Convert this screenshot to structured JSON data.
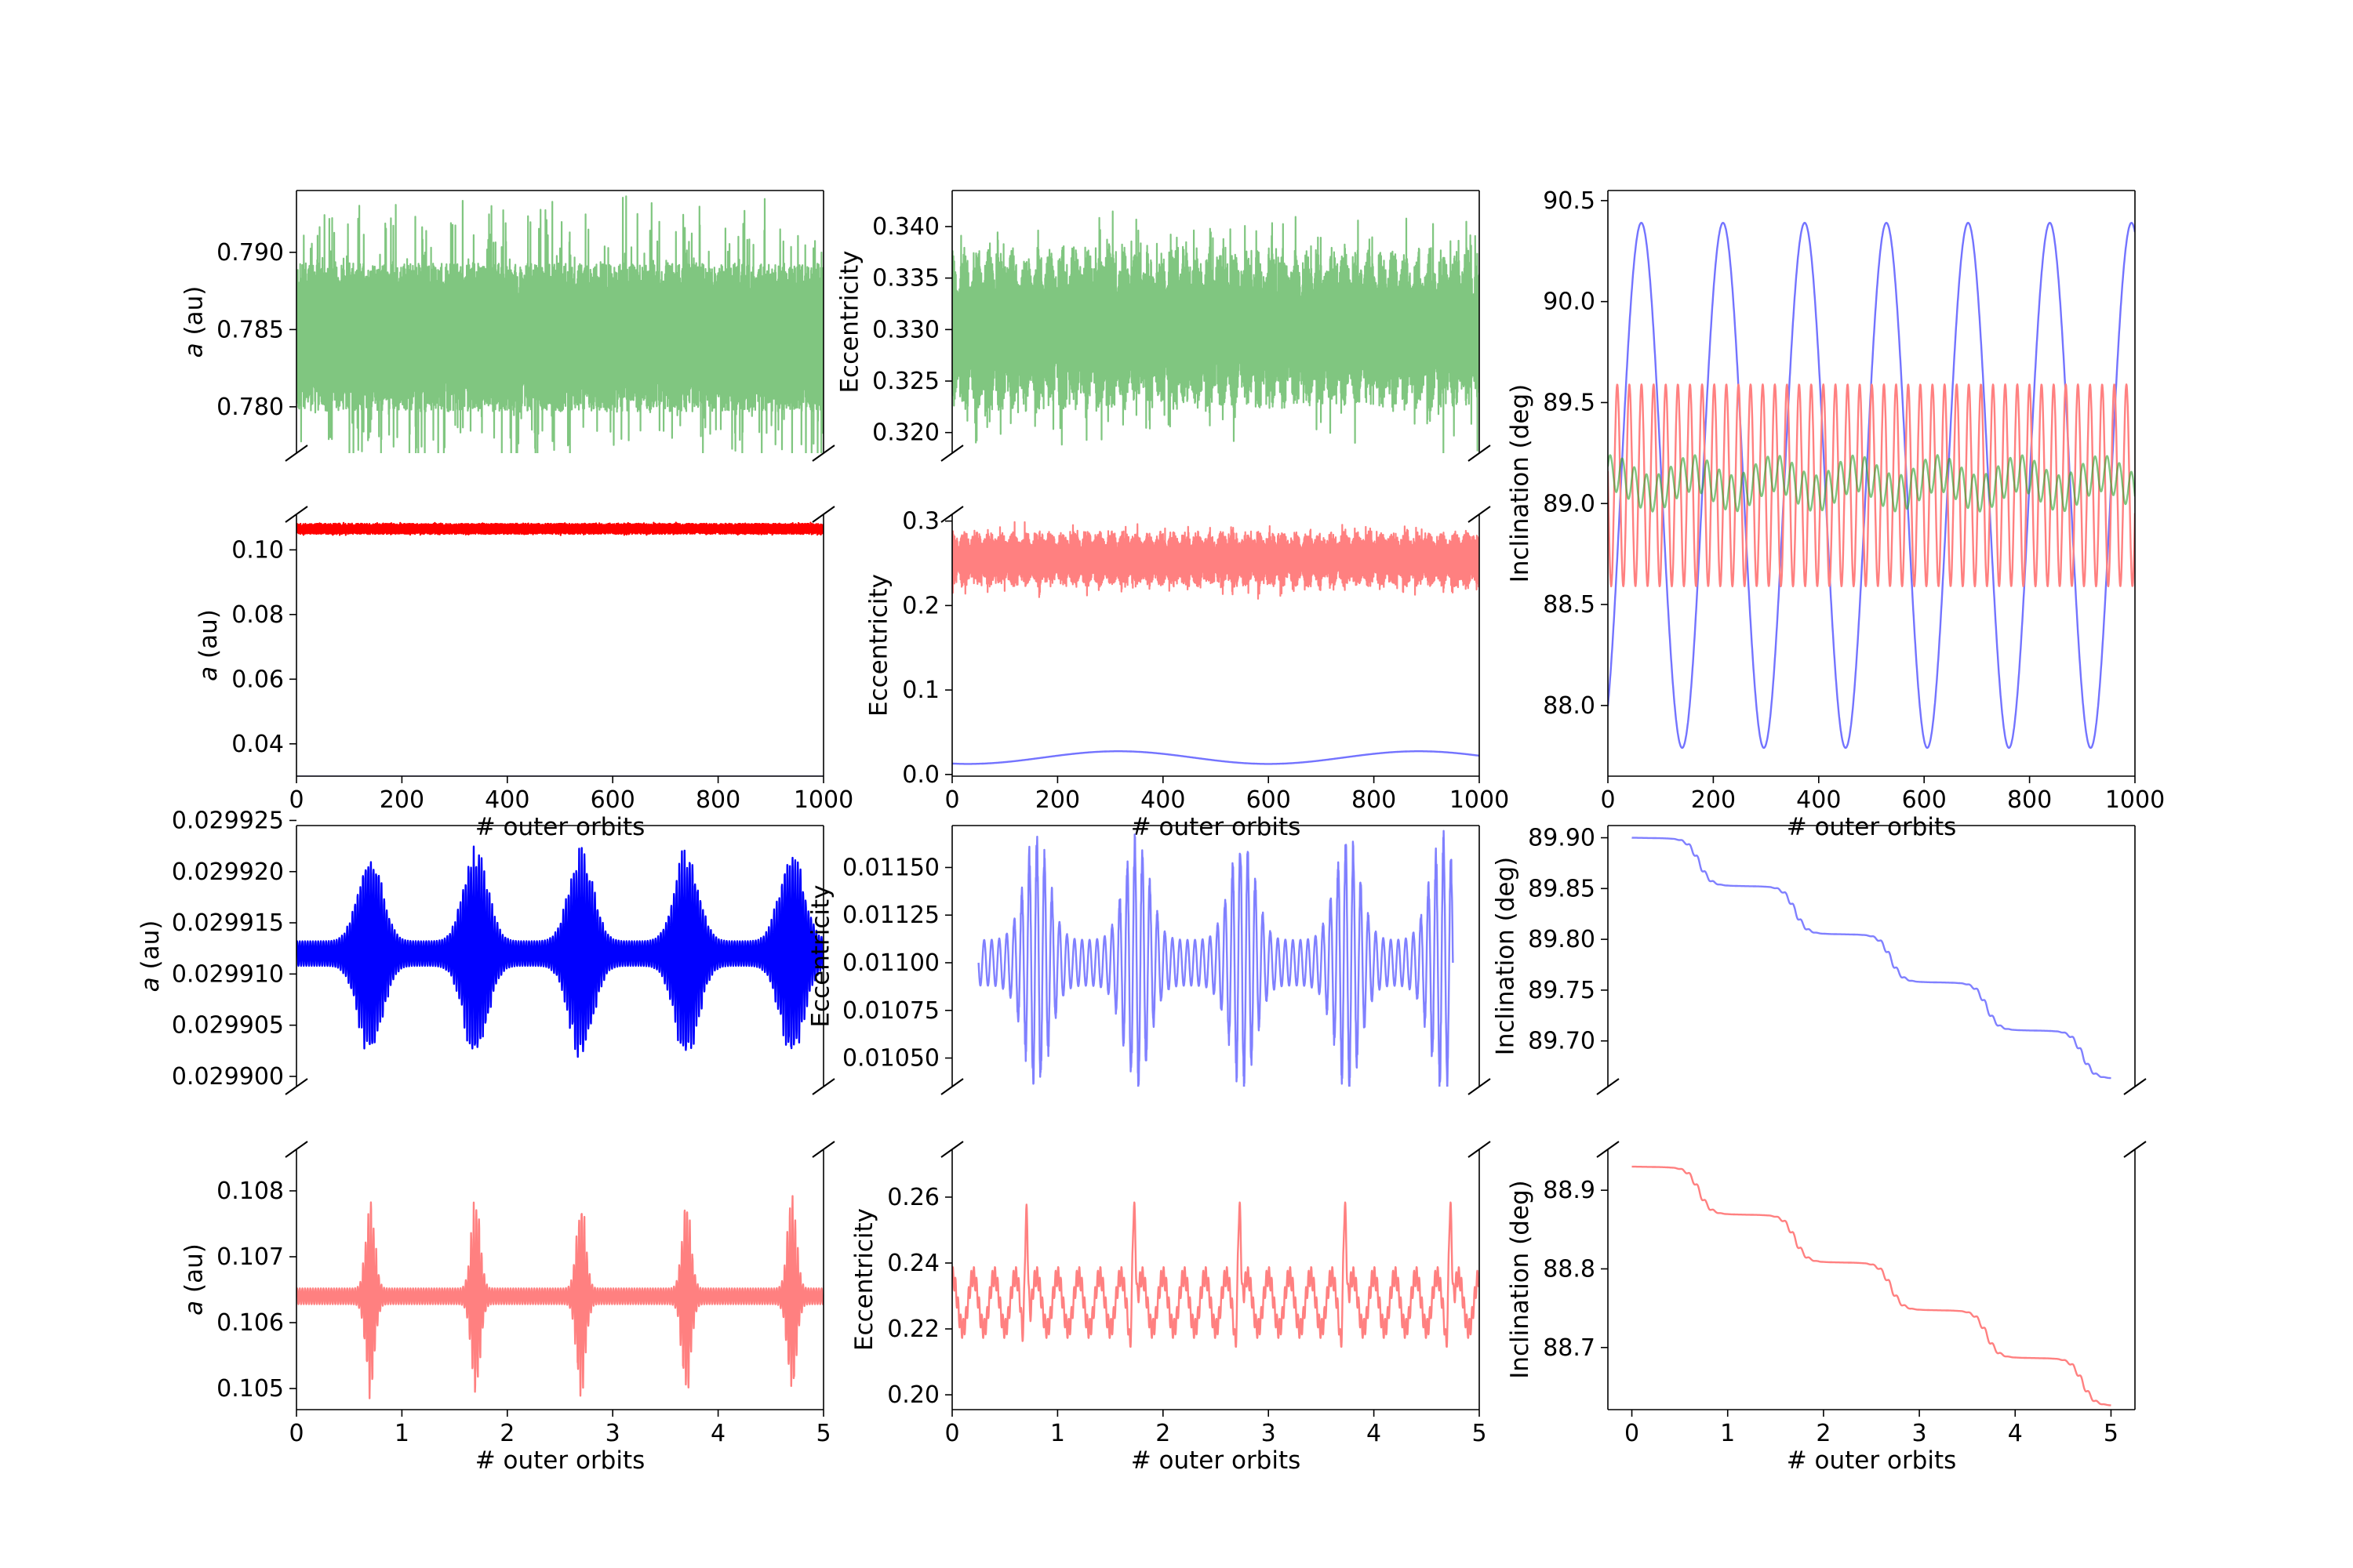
{
  "colors": {
    "green": "#2ca02c",
    "red": "#ff0000",
    "blue": "#0000ff",
    "light_red": "#ff8080",
    "light_blue": "#8080ff"
  },
  "chart_data": [
    {
      "id": "a-top",
      "type": "line",
      "ylabel": "a (au)",
      "xlim": [
        0,
        1000
      ],
      "ylim": [
        0.777,
        0.794
      ],
      "yticks": [
        0.78,
        0.785,
        0.79
      ],
      "ytick_labels": [
        "0.780",
        "0.785",
        "0.790"
      ],
      "xticks": [],
      "xtick_labels": [],
      "xlabel": "",
      "break_bottom": true,
      "series": [
        {
          "color": "green",
          "alpha": 0.6,
          "kind": "band",
          "center": 0.7845,
          "half": 0.0048,
          "spike": 0.0044,
          "freq": 0.19,
          "env_freq": 0
        }
      ]
    },
    {
      "id": "a-mid",
      "type": "line",
      "ylabel": "a (au)",
      "xlim": [
        0,
        1000
      ],
      "ylim": [
        0.03,
        0.111
      ],
      "yticks": [
        0.04,
        0.06,
        0.08,
        0.1
      ],
      "ytick_labels": [
        "0.04",
        "0.06",
        "0.08",
        "0.10"
      ],
      "xticks": [
        0,
        200,
        400,
        600,
        800,
        1000
      ],
      "xtick_labels": [
        "0",
        "200",
        "400",
        "600",
        "800",
        "1000"
      ],
      "xlabel": "# outer orbits",
      "break_top": true,
      "series": [
        {
          "color": "red",
          "alpha": 1.0,
          "kind": "band",
          "center": 0.1065,
          "half": 0.0016,
          "spike": 0.0004,
          "freq": 0.5,
          "env_freq": 0
        },
        {
          "color": "blue",
          "alpha": 0.55,
          "kind": "flat",
          "center": 0.0299
        }
      ]
    },
    {
      "id": "e-top",
      "type": "line",
      "ylabel": "Eccentricity",
      "xlim": [
        0,
        1000
      ],
      "ylim": [
        0.318,
        0.3435
      ],
      "yticks": [
        0.32,
        0.325,
        0.33,
        0.335,
        0.34
      ],
      "ytick_labels": [
        "0.320",
        "0.325",
        "0.330",
        "0.335",
        "0.340"
      ],
      "xticks": [],
      "xtick_labels": [],
      "xlabel": "",
      "break_bottom": true,
      "series": [
        {
          "color": "green",
          "alpha": 0.6,
          "kind": "band",
          "center": 0.33,
          "half": 0.008,
          "spike": 0.0048,
          "freq": 0.19,
          "env_freq": 0.043
        }
      ]
    },
    {
      "id": "e-mid",
      "type": "line",
      "ylabel": "Eccentricity",
      "xlim": [
        0,
        1000
      ],
      "ylim": [
        -0.002,
        0.308
      ],
      "yticks": [
        0.0,
        0.1,
        0.2,
        0.3
      ],
      "ytick_labels": [
        "0.0",
        "0.1",
        "0.2",
        "0.3"
      ],
      "xticks": [
        0,
        200,
        400,
        600,
        800,
        1000
      ],
      "xtick_labels": [
        "0",
        "200",
        "400",
        "600",
        "800",
        "1000"
      ],
      "xlabel": "# outer orbits",
      "break_top": true,
      "series": [
        {
          "color": "light_red",
          "alpha": 1.0,
          "kind": "band",
          "center": 0.255,
          "half": 0.033,
          "spike": 0.017,
          "freq": 0.043,
          "env_freq": 0.043
        },
        {
          "color": "blue",
          "alpha": 0.55,
          "kind": "sine",
          "center": 0.02,
          "amp": 0.0075,
          "period": 570,
          "phase": -1.9
        }
      ]
    },
    {
      "id": "inc-big",
      "type": "line",
      "ylabel": "Inclination (deg)",
      "xlim": [
        0,
        1000
      ],
      "ylim": [
        87.65,
        90.55
      ],
      "yticks": [
        88.0,
        88.5,
        89.0,
        89.5,
        90.0,
        90.5
      ],
      "ytick_labels": [
        "88.0",
        "88.5",
        "89.0",
        "89.5",
        "90.0",
        "90.5"
      ],
      "xticks": [
        0,
        200,
        400,
        600,
        800,
        1000
      ],
      "xtick_labels": [
        "0",
        "200",
        "400",
        "600",
        "800",
        "1000"
      ],
      "xlabel": "# outer orbits",
      "series": [
        {
          "color": "blue",
          "alpha": 0.55,
          "kind": "sine",
          "center": 89.09,
          "amp": 1.3,
          "period": 155,
          "phase": -1.0
        },
        {
          "color": "light_red",
          "alpha": 1.0,
          "kind": "sine",
          "center": 89.09,
          "amp": 0.5,
          "period": 23.0,
          "phase": 3.0
        },
        {
          "color": "green",
          "alpha": 0.6,
          "kind": "sine2",
          "center": 89.1,
          "amp": 0.09,
          "period": 23.0,
          "amp2": 0.05,
          "period2": 155,
          "phase": 0.4
        }
      ]
    },
    {
      "id": "a-zoom-blue",
      "type": "line",
      "ylabel": "a (au)",
      "xlim": [
        0,
        5
      ],
      "ylim": [
        0.029899,
        0.0299245
      ],
      "yticks": [
        0.0299,
        0.029905,
        0.02991,
        0.029915,
        0.02992,
        0.029925
      ],
      "ytick_labels": [
        "0.029900",
        "0.029905",
        "0.029910",
        "0.029915",
        "0.029920",
        "0.029925"
      ],
      "xticks": [],
      "xtick_labels": [],
      "xlabel": "",
      "break_bottom": true,
      "series": [
        {
          "color": "blue",
          "alpha": 1.0,
          "kind": "burst",
          "center": 0.029912,
          "base": 1.2e-06,
          "amp": 9.5e-06,
          "cycles": 40,
          "peaks": [
            0.7,
            1.7,
            2.7,
            3.7,
            4.7
          ],
          "width": 0.16
        }
      ]
    },
    {
      "id": "a-zoom-red",
      "type": "line",
      "ylabel": "a (au)",
      "xlim": [
        0,
        5
      ],
      "ylim": [
        0.10468,
        0.10863
      ],
      "yticks": [
        0.105,
        0.106,
        0.107,
        0.108
      ],
      "ytick_labels": [
        "0.105",
        "0.106",
        "0.107",
        "0.108"
      ],
      "xticks": [
        0,
        1,
        2,
        3,
        4,
        5
      ],
      "xtick_labels": [
        "0",
        "1",
        "2",
        "3",
        "4",
        "5"
      ],
      "xlabel": "# outer orbits",
      "break_top": true,
      "series": [
        {
          "color": "light_red",
          "alpha": 1.0,
          "kind": "burst",
          "center": 0.1064,
          "base": 0.00012,
          "amp": 0.0015,
          "cycles": 40,
          "peaks": [
            0.7,
            1.7,
            2.7,
            3.7,
            4.7
          ],
          "width": 0.06
        }
      ]
    },
    {
      "id": "e-zoom-blue",
      "type": "line",
      "ylabel": "Eccentricity",
      "xlim": [
        0,
        5
      ],
      "ylim": [
        0.01035,
        0.01172
      ],
      "yticks": [
        0.0105,
        0.01075,
        0.011,
        0.01125,
        0.0115
      ],
      "ytick_labels": [
        "0.01050",
        "0.01075",
        "0.01100",
        "0.01125",
        "0.01150"
      ],
      "xticks": [],
      "xtick_labels": [],
      "xlabel": "",
      "break_bottom": true,
      "series": [
        {
          "color": "light_blue",
          "alpha": 1.0,
          "kind": "burst2",
          "x0": 0.25,
          "x1": 4.75,
          "center": 0.011,
          "base": 0.00012,
          "amp": 0.00058,
          "cycles": 14,
          "peaks": [
            0.8,
            1.75,
            2.75,
            3.75,
            4.65
          ],
          "width": 0.17
        }
      ]
    },
    {
      "id": "e-zoom-red",
      "type": "line",
      "ylabel": "Eccentricity",
      "xlim": [
        0,
        5
      ],
      "ylim": [
        0.1955,
        0.2745
      ],
      "yticks": [
        0.2,
        0.22,
        0.24,
        0.26
      ],
      "ytick_labels": [
        "0.20",
        "0.22",
        "0.24",
        "0.26"
      ],
      "xticks": [
        0,
        1,
        2,
        3,
        4,
        5
      ],
      "xtick_labels": [
        "0",
        "1",
        "2",
        "3",
        "4",
        "5"
      ],
      "xlabel": "# outer orbits",
      "break_top": true,
      "series": [
        {
          "color": "light_red",
          "alpha": 1.0,
          "kind": "ecc",
          "center": 0.228,
          "amp": 0.008,
          "cycles": 5,
          "ripple": 0.003,
          "ripple_cycles": 40,
          "peaks": [
            0.7,
            1.72,
            2.72,
            3.72,
            4.72
          ],
          "spike": 0.036
        }
      ]
    },
    {
      "id": "inc-zoom-blue",
      "type": "line",
      "ylabel": "Inclination (deg)",
      "xlim": [
        -0.25,
        5.25
      ],
      "ylim": [
        89.655,
        89.912
      ],
      "yticks": [
        89.7,
        89.75,
        89.8,
        89.85,
        89.9
      ],
      "ytick_labels": [
        "89.70",
        "89.75",
        "89.80",
        "89.85",
        "89.90"
      ],
      "xticks": [],
      "xtick_labels": [],
      "xlabel": "",
      "break_bottom": true,
      "series": [
        {
          "color": "light_blue",
          "alpha": 1.0,
          "kind": "stairs",
          "x0": 0,
          "x1": 5,
          "start": 89.9,
          "end": 89.67,
          "steps": [
            0.7,
            1.7,
            2.7,
            3.7,
            4.7
          ],
          "wiggle": 0.003
        }
      ]
    },
    {
      "id": "inc-zoom-red",
      "type": "line",
      "ylabel": "Inclination (deg)",
      "xlim": [
        -0.25,
        5.25
      ],
      "ylim": [
        88.621,
        88.952
      ],
      "yticks": [
        88.7,
        88.8,
        88.9
      ],
      "ytick_labels": [
        "88.7",
        "88.8",
        "88.9"
      ],
      "xticks": [
        0,
        1,
        2,
        3,
        4,
        5
      ],
      "xtick_labels": [
        "0",
        "1",
        "2",
        "3",
        "4",
        "5"
      ],
      "xlabel": "# outer orbits",
      "break_top": true,
      "series": [
        {
          "color": "light_red",
          "alpha": 1.0,
          "kind": "stairs",
          "x0": 0,
          "x1": 5,
          "start": 88.93,
          "end": 88.635,
          "steps": [
            0.7,
            1.7,
            2.7,
            3.7,
            4.7
          ],
          "wiggle": 0.004
        }
      ]
    }
  ]
}
